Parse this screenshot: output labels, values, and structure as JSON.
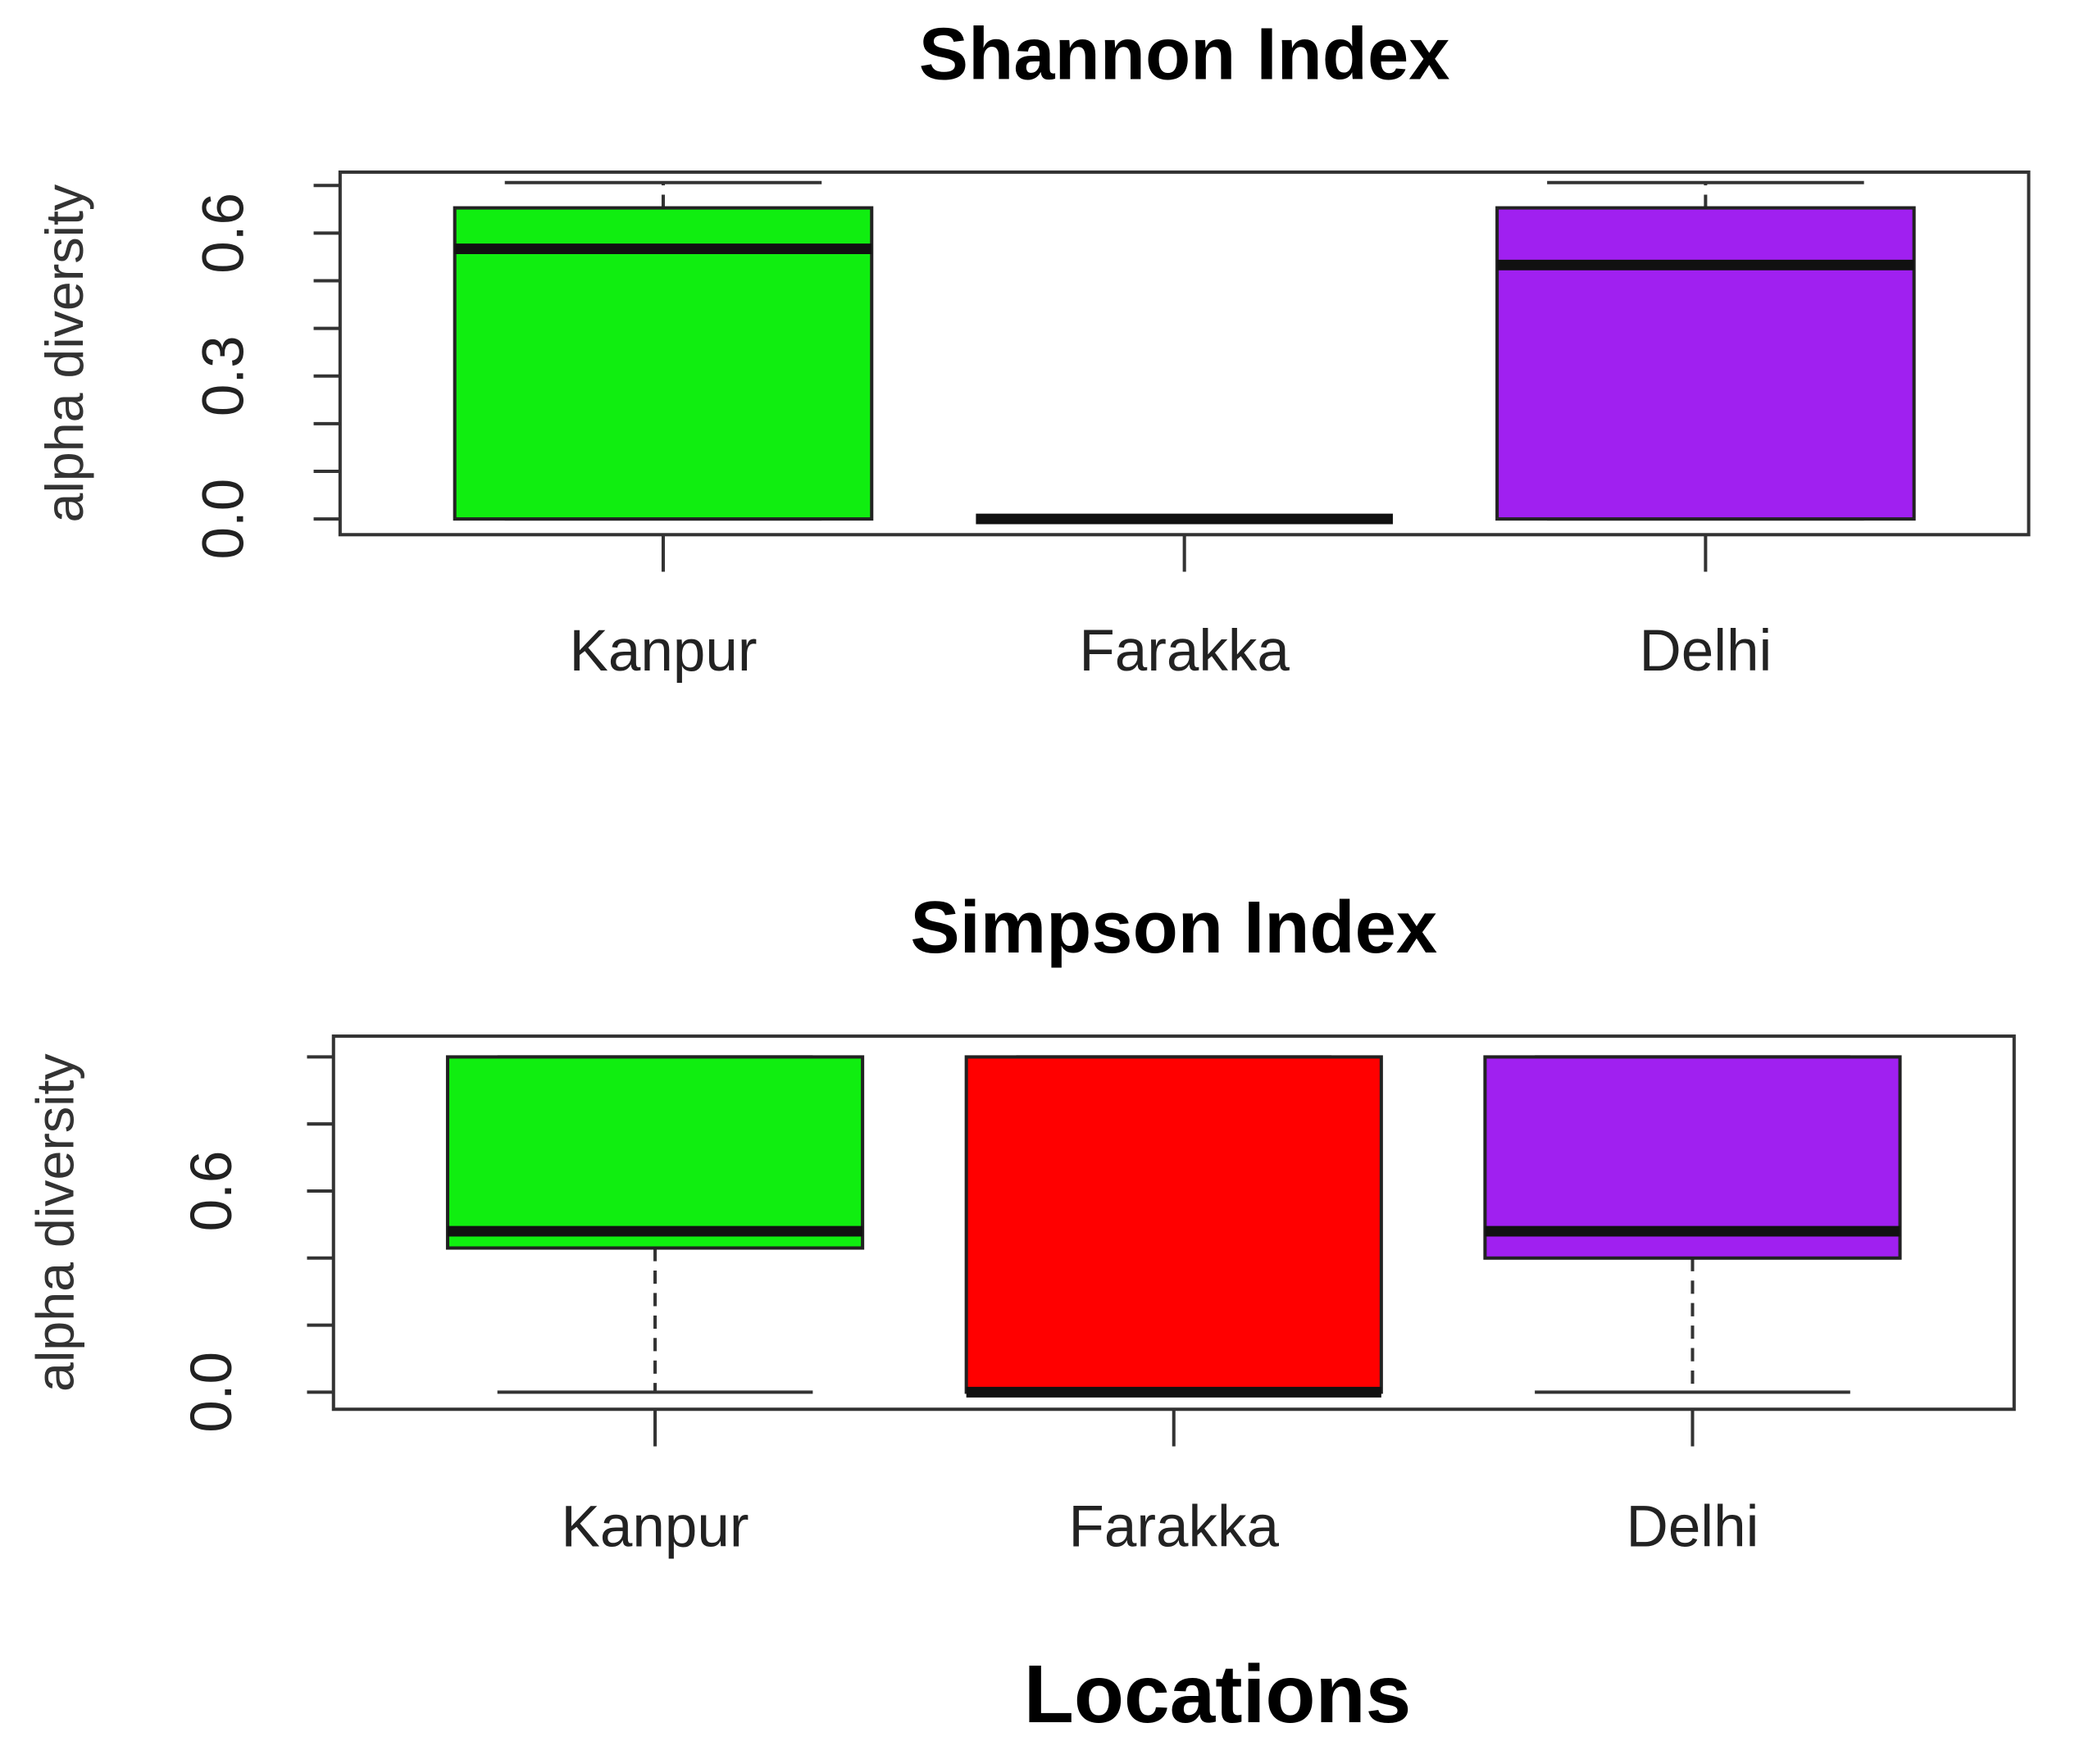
{
  "chart_data": [
    {
      "type": "box",
      "title": "Shannon Index",
      "ylabel": "alpha diversity",
      "categories": [
        "Kanpur",
        "Farakka",
        "Delhi"
      ],
      "colors": [
        "#10ee10",
        "#ff0000",
        "#a020f0"
      ],
      "min": [
        0,
        0,
        0
      ],
      "q1": [
        0,
        0,
        0
      ],
      "median": [
        0.567,
        0,
        0.533
      ],
      "q3": [
        0.653,
        0,
        0.653
      ],
      "max": [
        0.706,
        0,
        0.706
      ],
      "ylim": [
        -0.033,
        0.728
      ],
      "yticks": [
        {
          "value": 0,
          "label": "0.0"
        },
        0.3,
        0.6
      ],
      "yminor": [
        0.1,
        0.2,
        0.4,
        0.5,
        0.7
      ]
    },
    {
      "type": "box",
      "title": "Simpson Index",
      "ylabel": "alpha diversity",
      "xlabel": "Locations",
      "categories": [
        "Kanpur",
        "Farakka",
        "Delhi"
      ],
      "colors": [
        "#10ee10",
        "#ff0000",
        "#a020f0"
      ],
      "min": [
        0,
        0,
        0
      ],
      "q1": [
        0.43,
        0,
        0.4
      ],
      "median": [
        0.48,
        0,
        0.48
      ],
      "q3": [
        1.0,
        1.0,
        1.0
      ],
      "max": [
        1.0,
        1.0,
        1.0
      ],
      "ylim": [
        -0.051,
        1.062
      ],
      "yticks": [
        {
          "value": 0,
          "label": "0.0"
        },
        0.6
      ],
      "yminor": [
        0.2,
        0.4,
        0.8,
        1.0
      ]
    }
  ]
}
